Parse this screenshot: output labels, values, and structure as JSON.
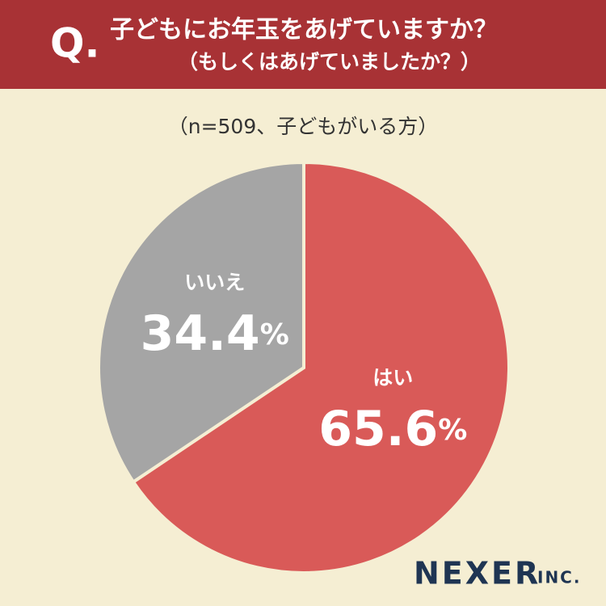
{
  "chart_data": {
    "type": "pie",
    "question_mark": "Q.",
    "title": "子どもにお年玉をあげていますか？",
    "title_note": "（もしくはあげていましたか？）",
    "subtitle": "（n=509、子どもがいる方）",
    "categories": [
      "はい",
      "いいえ"
    ],
    "values": [
      65.6,
      34.4
    ],
    "value_labels": [
      "65.6%",
      "34.4%"
    ],
    "colors": [
      "#d95a58",
      "#a5a5a5"
    ],
    "logo": "NEXER",
    "logo_suffix": "INC."
  }
}
